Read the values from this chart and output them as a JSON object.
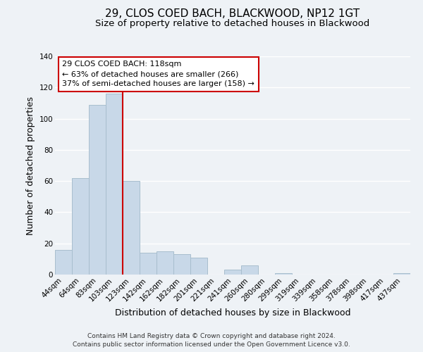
{
  "title": "29, CLOS COED BACH, BLACKWOOD, NP12 1GT",
  "subtitle": "Size of property relative to detached houses in Blackwood",
  "xlabel": "Distribution of detached houses by size in Blackwood",
  "ylabel": "Number of detached properties",
  "bar_labels": [
    "44sqm",
    "64sqm",
    "83sqm",
    "103sqm",
    "123sqm",
    "142sqm",
    "162sqm",
    "182sqm",
    "201sqm",
    "221sqm",
    "241sqm",
    "260sqm",
    "280sqm",
    "299sqm",
    "319sqm",
    "339sqm",
    "358sqm",
    "378sqm",
    "398sqm",
    "417sqm",
    "437sqm"
  ],
  "bar_values": [
    16,
    62,
    109,
    116,
    60,
    14,
    15,
    13,
    11,
    0,
    3,
    6,
    0,
    1,
    0,
    0,
    0,
    0,
    0,
    0,
    1
  ],
  "bar_color": "#c8d8e8",
  "bar_edge_color": "#a8bece",
  "vline_color": "#cc0000",
  "vline_x": 3.5,
  "ylim": [
    0,
    140
  ],
  "yticks": [
    0,
    20,
    40,
    60,
    80,
    100,
    120,
    140
  ],
  "annotation_title": "29 CLOS COED BACH: 118sqm",
  "annotation_line1": "← 63% of detached houses are smaller (266)",
  "annotation_line2": "37% of semi-detached houses are larger (158) →",
  "annotation_box_facecolor": "#ffffff",
  "annotation_box_edgecolor": "#cc0000",
  "footer_line1": "Contains HM Land Registry data © Crown copyright and database right 2024.",
  "footer_line2": "Contains public sector information licensed under the Open Government Licence v3.0.",
  "background_color": "#eef2f6",
  "grid_color": "#ffffff",
  "title_fontsize": 11,
  "subtitle_fontsize": 9.5,
  "axis_label_fontsize": 9,
  "tick_fontsize": 7.5,
  "annotation_fontsize": 8,
  "footer_fontsize": 6.5
}
